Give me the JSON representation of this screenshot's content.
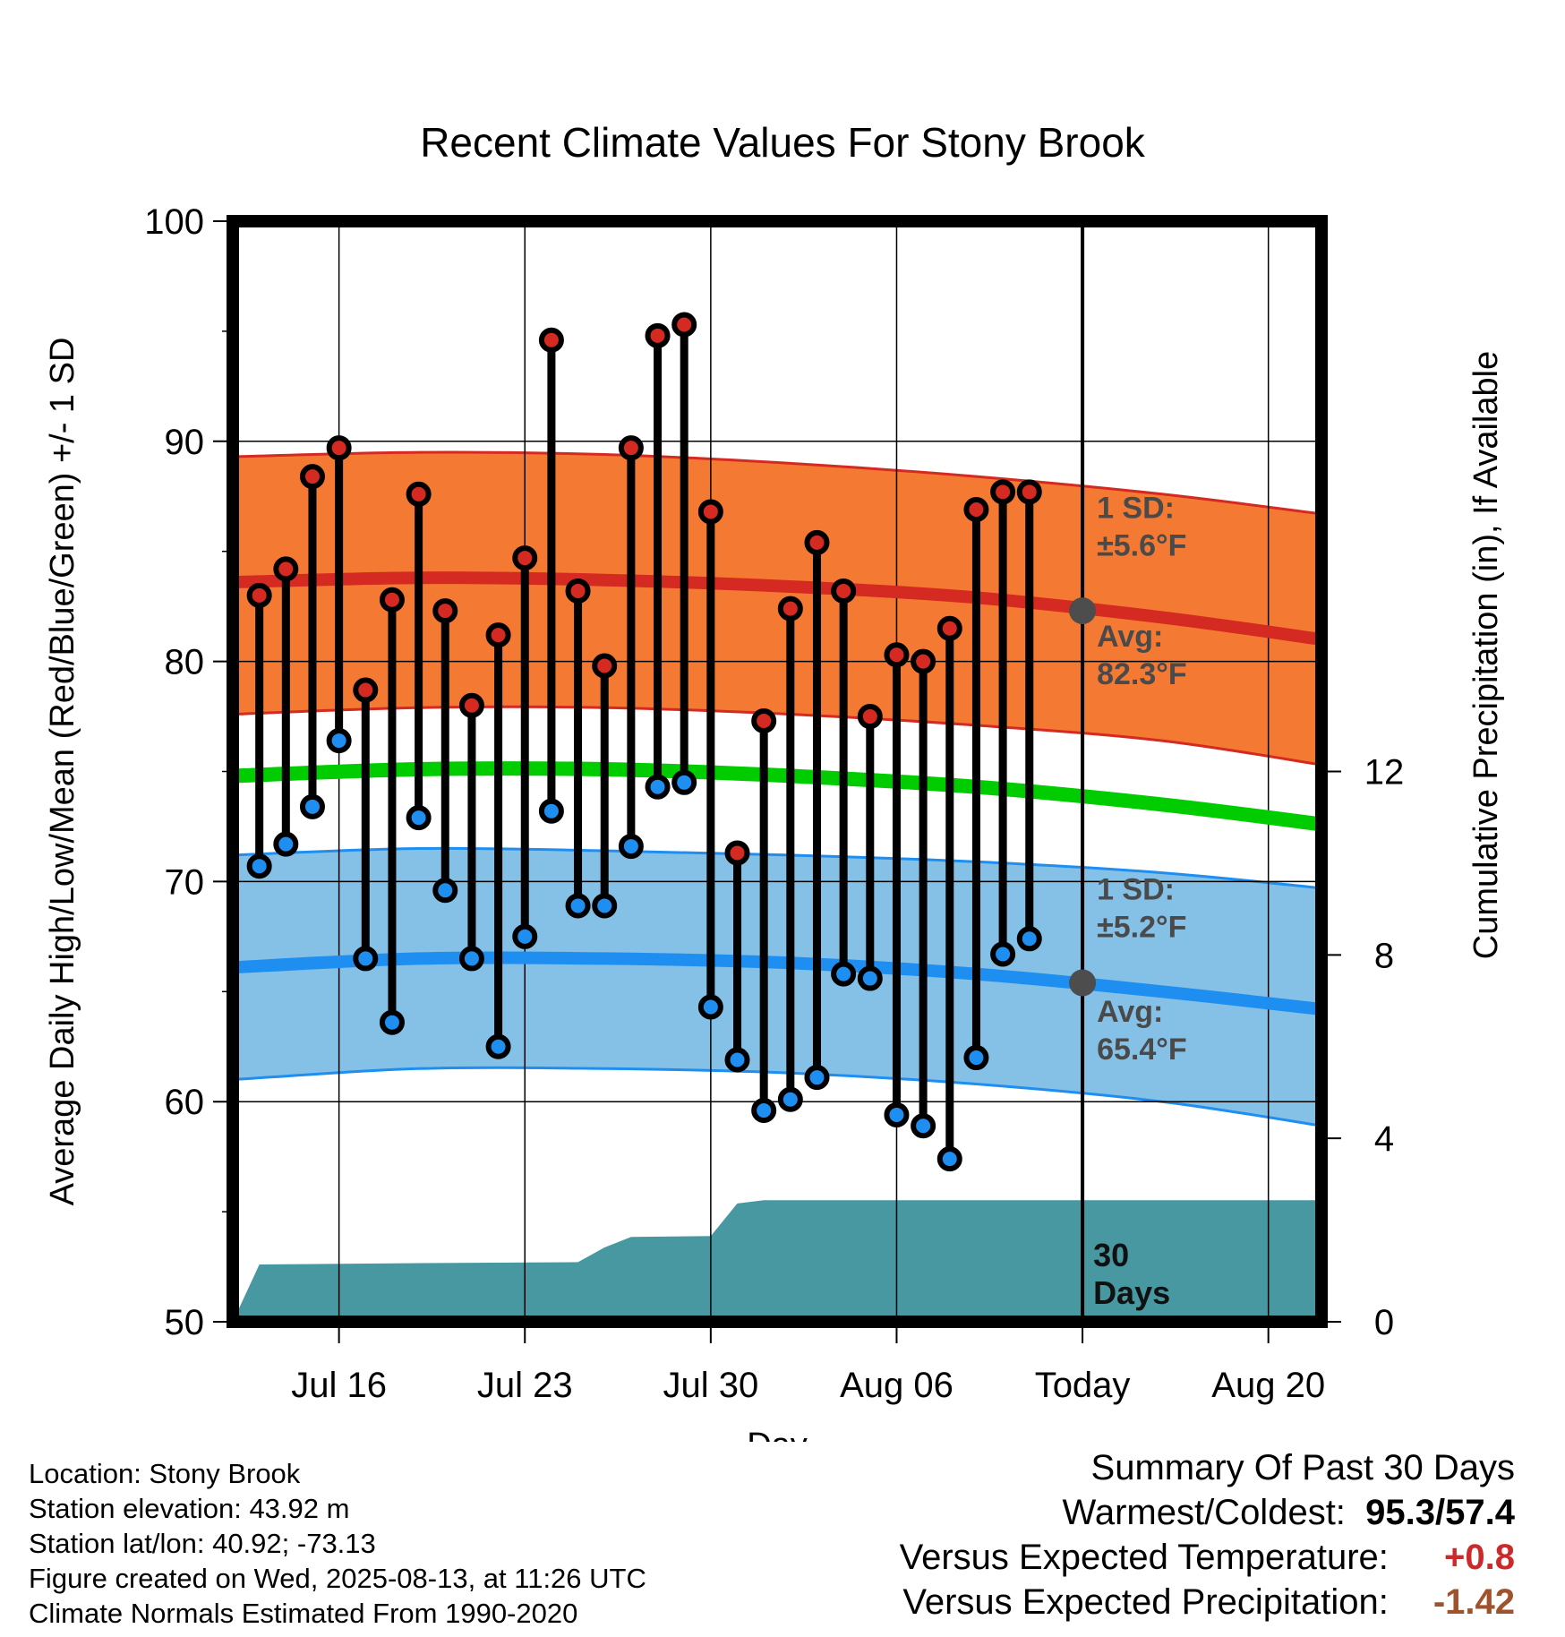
{
  "chart_data": {
    "type": "line",
    "title": "Recent Climate Values For Stony Brook",
    "xlabel": "Day",
    "ylabel": "Average Daily High/Low/Mean (Red/Blue/Green) +/- 1 SD",
    "y2label": "Cumulative Precipitation (in), If Available",
    "ylim": [
      50,
      100
    ],
    "y2lim": [
      0,
      24
    ],
    "yticks": [
      "50",
      "60",
      "70",
      "80",
      "90",
      "100"
    ],
    "y2ticks": [
      "0",
      "4",
      "8",
      "12"
    ],
    "xlim": [
      "2025-07-12",
      "2025-08-22"
    ],
    "xticks": [
      {
        "date": "2025-07-16",
        "label": "Jul 16"
      },
      {
        "date": "2025-07-23",
        "label": "Jul 23"
      },
      {
        "date": "2025-07-30",
        "label": "Jul 30"
      },
      {
        "date": "2025-08-06",
        "label": "Aug 06"
      },
      {
        "date": "2025-08-13",
        "label": "Today"
      },
      {
        "date": "2025-08-20",
        "label": "Aug 20"
      }
    ],
    "grid": true,
    "today": "2025-08-13",
    "normals": {
      "dates": [
        "2025-07-12",
        "2025-07-19",
        "2025-07-26",
        "2025-08-02",
        "2025-08-09",
        "2025-08-16",
        "2025-08-22"
      ],
      "avg_high": [
        83.6,
        83.8,
        83.7,
        83.4,
        82.9,
        82.0,
        81.0
      ],
      "avg_high_sd_upper": [
        89.3,
        89.5,
        89.4,
        89.0,
        88.4,
        87.6,
        86.7
      ],
      "avg_high_sd_lower": [
        77.6,
        77.9,
        77.9,
        77.6,
        77.1,
        76.4,
        75.3
      ],
      "avg_mean": [
        74.8,
        75.1,
        75.1,
        74.8,
        74.3,
        73.5,
        72.6
      ],
      "avg_low": [
        66.1,
        66.5,
        66.5,
        66.3,
        65.8,
        65.0,
        64.2
      ],
      "avg_low_sd_upper": [
        71.2,
        71.5,
        71.4,
        71.2,
        70.9,
        70.4,
        69.7
      ],
      "avg_low_sd_lower": [
        61.0,
        61.5,
        61.5,
        61.3,
        60.8,
        60.0,
        58.9
      ]
    },
    "daily": {
      "dates": [
        "2025-07-13",
        "2025-07-14",
        "2025-07-15",
        "2025-07-16",
        "2025-07-17",
        "2025-07-18",
        "2025-07-19",
        "2025-07-20",
        "2025-07-21",
        "2025-07-22",
        "2025-07-23",
        "2025-07-24",
        "2025-07-25",
        "2025-07-26",
        "2025-07-27",
        "2025-07-28",
        "2025-07-29",
        "2025-07-30",
        "2025-07-31",
        "2025-08-01",
        "2025-08-02",
        "2025-08-03",
        "2025-08-04",
        "2025-08-05",
        "2025-08-06",
        "2025-08-07",
        "2025-08-08",
        "2025-08-09",
        "2025-08-10",
        "2025-08-11",
        "2025-08-12"
      ],
      "high": [
        83.0,
        84.2,
        88.4,
        89.7,
        78.7,
        82.8,
        87.6,
        82.3,
        78.0,
        81.2,
        84.7,
        94.6,
        83.2,
        79.8,
        89.7,
        94.8,
        95.3,
        86.8,
        71.3,
        77.3,
        82.4,
        85.4,
        83.2,
        77.5,
        80.3,
        80.0,
        81.5,
        86.9,
        87.7,
        87.7,
        null
      ],
      "low": [
        70.7,
        71.7,
        73.4,
        76.4,
        66.5,
        63.6,
        72.9,
        69.6,
        66.5,
        62.5,
        67.5,
        73.2,
        68.9,
        68.9,
        71.6,
        74.3,
        74.5,
        64.3,
        61.9,
        59.6,
        60.1,
        61.1,
        65.8,
        65.6,
        59.4,
        58.9,
        57.4,
        62.0,
        66.7,
        67.4,
        null
      ]
    },
    "precip": {
      "dates": [
        "2025-07-12",
        "2025-07-13",
        "2025-07-19",
        "2025-07-25",
        "2025-07-26",
        "2025-07-27",
        "2025-07-30",
        "2025-07-31",
        "2025-08-01",
        "2025-08-22"
      ],
      "cumulative": [
        0.0,
        1.25,
        1.28,
        1.3,
        1.62,
        1.85,
        1.87,
        2.58,
        2.65,
        2.65
      ]
    },
    "annotations": {
      "high_sd": "1 SD:",
      "high_sd_value": "±5.6°F",
      "high_avg": "Avg:",
      "high_avg_value": "82.3°F",
      "low_sd": "1 SD:",
      "low_sd_value": "±5.2°F",
      "low_avg": "Avg:",
      "low_avg_value": "65.4°F",
      "period_line1": "30",
      "period_line2": "Days"
    },
    "colors": {
      "high": "#d42a22",
      "high_band": "#f47a33",
      "mean": "#00cc00",
      "low": "#1e8ff0",
      "low_band": "#85c1e7",
      "precip": "#4898a2",
      "today_marker": "#4d4d4d"
    }
  },
  "info": {
    "location": "Location: Stony Brook",
    "elevation": "Station elevation: 43.92 m",
    "latlon": "Station lat/lon: 40.92; -73.13",
    "created": "Figure created on Wed, 2025-08-13, at 11:26 UTC",
    "normals": "Climate Normals Estimated From 1990-2020"
  },
  "summary": {
    "title": "Summary Of Past 30 Days",
    "warm_cold_label": "Warmest/Coldest:",
    "warm_value": "95.3",
    "warm_cold_sep": "/",
    "cold_value": "57.4",
    "temp_label": "Versus Expected Temperature:",
    "temp_value": "+0.8",
    "temp_color": "#cc2a2a",
    "precip_label": "Versus Expected Precipitation:",
    "precip_value": "-1.42",
    "precip_color": "#a0522d"
  }
}
